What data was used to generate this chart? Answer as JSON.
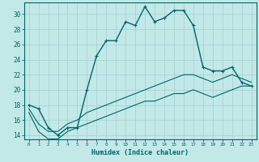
{
  "xlabel": "Humidex (Indice chaleur)",
  "ylabel": "",
  "bg_color": "#c2e8e8",
  "line_color": "#006666",
  "grid_color": "#a8d4d4",
  "x_values": [
    0,
    1,
    2,
    3,
    4,
    5,
    6,
    7,
    8,
    9,
    10,
    11,
    12,
    13,
    14,
    15,
    16,
    17,
    18,
    19,
    20,
    21,
    22,
    23
  ],
  "series1": [
    18,
    17.5,
    15,
    14,
    15,
    15,
    20,
    24.5,
    26.5,
    26.5,
    29,
    28.5,
    31,
    29,
    29.5,
    30.5,
    30.5,
    28.5,
    23,
    22.5,
    22.5,
    23,
    21,
    20.5
  ],
  "series2": [
    17.5,
    15.5,
    14.5,
    14.5,
    15.5,
    16,
    17,
    17.5,
    18,
    18.5,
    19,
    19.5,
    20,
    20.5,
    21,
    21.5,
    22,
    22,
    21.5,
    21,
    21.5,
    22,
    21.5,
    21
  ],
  "series3": [
    17,
    14.5,
    13.5,
    13.5,
    14.5,
    15,
    15.5,
    16,
    16.5,
    17,
    17.5,
    18,
    18.5,
    18.5,
    19,
    19.5,
    19.5,
    20,
    19.5,
    19,
    19.5,
    20,
    20.5,
    20.5
  ],
  "ylim_min": 13.5,
  "ylim_max": 31.5,
  "yticks": [
    14,
    16,
    18,
    20,
    22,
    24,
    26,
    28,
    30
  ],
  "xticks": [
    0,
    1,
    2,
    3,
    4,
    5,
    6,
    7,
    8,
    9,
    10,
    11,
    12,
    13,
    14,
    15,
    16,
    17,
    18,
    19,
    20,
    21,
    22,
    23
  ]
}
